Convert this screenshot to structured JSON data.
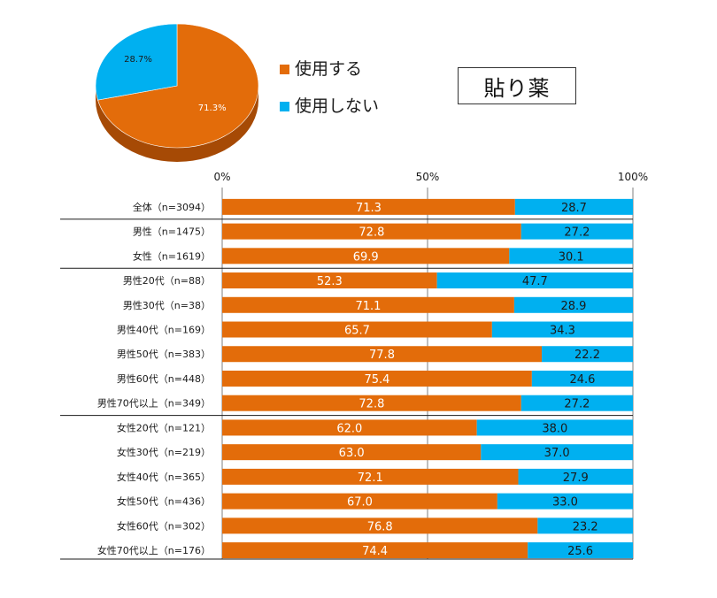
{
  "badge": "貼り薬",
  "colors": {
    "use": "#E36C0A",
    "notuse": "#00B0F0",
    "pie_side": "#A64A05",
    "grid": "#7F7F7F"
  },
  "chart_data": [
    {
      "type": "pie",
      "title": "",
      "labels": [
        "使用する",
        "使用しない"
      ],
      "values": [
        71.3,
        28.7
      ],
      "value_labels": [
        "71.3%",
        "28.7%"
      ],
      "legend_position": "right"
    },
    {
      "type": "bar",
      "orientation": "horizontal",
      "stacked": true,
      "percent": true,
      "xlim": [
        0,
        100
      ],
      "xticks": [
        "0%",
        "50%",
        "100%"
      ],
      "categories": [
        "全体（n=3094）",
        "男性（n=1475）",
        "女性（n=1619）",
        "男性20代（n=88）",
        "男性30代（n=38）",
        "男性40代（n=169）",
        "男性50代（n=383）",
        "男性60代（n=448）",
        "男性70代以上（n=349）",
        "女性20代（n=121）",
        "女性30代（n=219）",
        "女性40代（n=365）",
        "女性50代（n=436）",
        "女性60代（n=302）",
        "女性70代以上（n=176）"
      ],
      "series": [
        {
          "name": "使用する",
          "values": [
            71.3,
            72.8,
            69.9,
            52.3,
            71.1,
            65.7,
            77.8,
            75.4,
            72.8,
            62.0,
            63.0,
            72.1,
            67.0,
            76.8,
            74.4
          ],
          "labels": [
            "71.3",
            "72.8",
            "69.9",
            "52.3",
            "71.1",
            "65.7",
            "77.8",
            "75.4",
            "72.8",
            "62.0",
            "63.0",
            "72.1",
            "67.0",
            "76.8",
            "74.4"
          ]
        },
        {
          "name": "使用しない",
          "values": [
            28.7,
            27.2,
            30.1,
            47.7,
            28.9,
            34.3,
            22.2,
            24.6,
            27.2,
            38.0,
            37.0,
            27.9,
            33.0,
            23.2,
            25.6
          ],
          "labels": [
            "28.7",
            "27.2",
            "30.1",
            "47.7",
            "28.9",
            "34.3",
            "22.2",
            "24.6",
            "27.2",
            "38.0",
            "37.0",
            "27.9",
            "33.0",
            "23.2",
            "25.6"
          ]
        }
      ],
      "group_separators_after": [
        0,
        2,
        8
      ]
    }
  ]
}
